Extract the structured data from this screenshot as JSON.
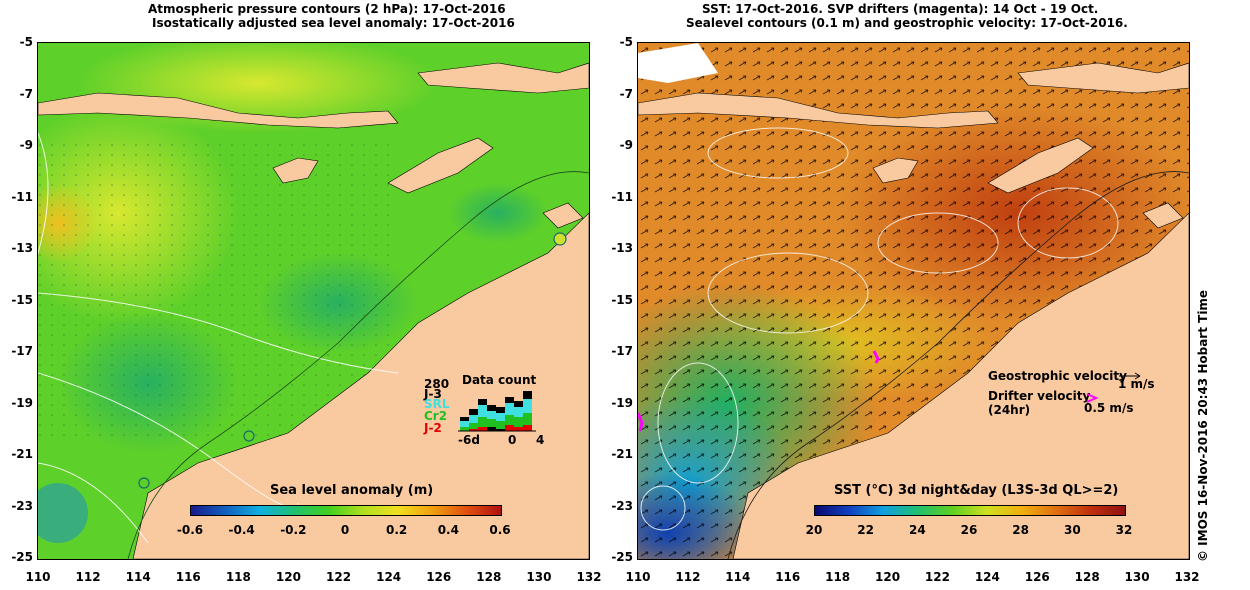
{
  "left_title": {
    "line1": "Atmospheric pressure contours (2 hPa): 17-Oct-2016",
    "line2": "Isostatically adjusted sea level anomaly: 17-Oct-2016"
  },
  "right_title": {
    "line1": "SST: 17-Oct-2016. SVP drifters (magenta): 14 Oct - 19 Oct.",
    "line2": "Sealevel contours (0.1 m) and geostrophic velocity: 17-Oct-2016."
  },
  "axes": {
    "lat_labels": [
      "-5",
      "-7",
      "-9",
      "-11",
      "-13",
      "-15",
      "-17",
      "-19",
      "-21",
      "-23",
      "-25"
    ],
    "lon_labels": [
      "110",
      "112",
      "114",
      "116",
      "118",
      "120",
      "122",
      "124",
      "126",
      "128",
      "130",
      "132"
    ],
    "lon_range": [
      110,
      132
    ],
    "lat_range": [
      -25,
      -5
    ]
  },
  "left_colorbar": {
    "title": "Sea level anomaly (m)",
    "ticks": [
      "-0.6",
      "-0.4",
      "-0.2",
      "0",
      "0.2",
      "0.4",
      "0.6"
    ],
    "colors": [
      "#1a1a8c",
      "#1060c0",
      "#10b0e0",
      "#20c070",
      "#40d020",
      "#b0e020",
      "#f0e020",
      "#f0a010",
      "#e05010",
      "#b01010"
    ]
  },
  "right_colorbar": {
    "title": "SST (°C) 3d night&day (L3S-3d QL>=2)",
    "ticks": [
      "20",
      "22",
      "24",
      "26",
      "28",
      "30",
      "32"
    ],
    "colors": [
      "#0a0a70",
      "#1040c0",
      "#10a0e0",
      "#20c070",
      "#60d020",
      "#d0e020",
      "#f0b010",
      "#e07010",
      "#c03010",
      "#901010"
    ]
  },
  "data_count": {
    "title": "Data count",
    "max": "280",
    "labels": [
      "J-3",
      "SRL",
      "Cr2",
      "J-2"
    ],
    "label_colors": [
      "#000000",
      "#40e0e0",
      "#20c020",
      "#e00000"
    ],
    "x_ticks": [
      "-6d",
      "0",
      "4"
    ]
  },
  "legend": {
    "geostrophic": "Geostrophic velocity",
    "geostrophic_scale": "1 m/s",
    "drifter": "Drifter velocity",
    "drifter_unit": "(24hr)",
    "drifter_scale": "0.5 m/s"
  },
  "credit": "© IMOS 16-Nov-2016 20:43 Hobart Time",
  "colors": {
    "land": "#f9c9a0",
    "sla_background": "#5ed02a",
    "sst_background": "#e08a2a",
    "drifter": "#ff00ff"
  }
}
